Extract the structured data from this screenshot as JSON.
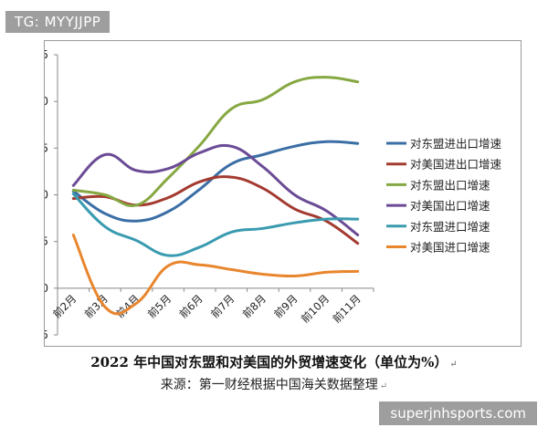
{
  "watermarks": {
    "top": "TG: MYYJJPP",
    "bottom": "superjnhsports.com"
  },
  "caption": {
    "title": "2022 年中国对东盟和对美国的外贸增速变化（单位为%）",
    "source": "来源：第一财经根据中国海关数据整理"
  },
  "chart_data": {
    "type": "line",
    "categories": [
      "前2月",
      "前3月",
      "前4月",
      "前5月",
      "前6月",
      "前7月",
      "前8月",
      "前9月",
      "前10月",
      "前11月"
    ],
    "ylim": [
      -5,
      25
    ],
    "yticks": [
      -5,
      0,
      5,
      10,
      15,
      20,
      25
    ],
    "grid": false,
    "legend_position": "right",
    "series": [
      {
        "name": "对东盟进出口增速",
        "color": "#3a6ea5",
        "values": [
          10.4,
          8.0,
          7.2,
          8.2,
          10.6,
          13.3,
          14.3,
          15.2,
          15.7,
          15.5
        ]
      },
      {
        "name": "对美国进出口增速",
        "color": "#a33a30",
        "values": [
          9.6,
          9.8,
          8.9,
          9.7,
          11.4,
          11.9,
          10.7,
          8.5,
          7.2,
          4.8
        ]
      },
      {
        "name": "对东盟出口增速",
        "color": "#86a842",
        "values": [
          10.5,
          10.0,
          8.9,
          11.8,
          15.3,
          19.2,
          20.2,
          22.1,
          22.6,
          22.1
        ]
      },
      {
        "name": "对美国出口增速",
        "color": "#6b4b95",
        "values": [
          11.0,
          14.3,
          12.6,
          12.8,
          14.5,
          15.2,
          13.0,
          10.0,
          8.3,
          5.7
        ]
      },
      {
        "name": "对东盟进口增速",
        "color": "#3a9bb0",
        "values": [
          10.1,
          6.6,
          5.1,
          3.5,
          4.4,
          6.0,
          6.4,
          7.0,
          7.4,
          7.4
        ]
      },
      {
        "name": "对美国进口增速",
        "color": "#e8862e",
        "values": [
          5.7,
          -2.0,
          -1.6,
          2.4,
          2.5,
          2.0,
          1.5,
          1.3,
          1.7,
          1.8
        ]
      }
    ]
  }
}
